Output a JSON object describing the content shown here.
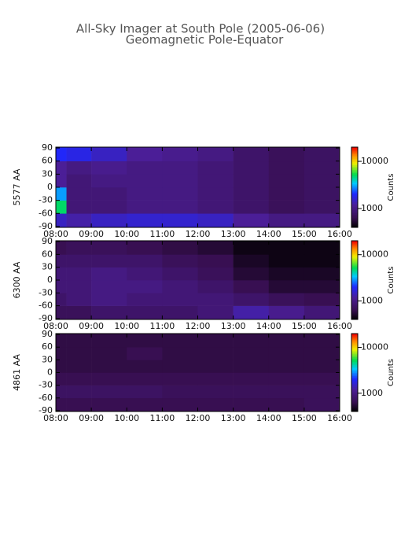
{
  "title": "All-Sky Imager at South Pole (2005-06-06)",
  "subtitle": "Geomagnetic Pole-Equator",
  "chart_data": [
    {
      "type": "heatmap",
      "ylabel": "5577 AA",
      "xlim": [
        8,
        16
      ],
      "xticks": [
        {
          "value": 8,
          "label": "08:00"
        },
        {
          "value": 9,
          "label": "09:00"
        },
        {
          "value": 10,
          "label": "10:00"
        },
        {
          "value": 11,
          "label": "11:00"
        },
        {
          "value": 12,
          "label": "12:00"
        },
        {
          "value": 13,
          "label": "13:00"
        },
        {
          "value": 14,
          "label": "14:00"
        },
        {
          "value": 15,
          "label": "15:00"
        },
        {
          "value": 16,
          "label": "16:00"
        }
      ],
      "ylim": [
        -92,
        92
      ],
      "yticks": [
        -90,
        -60,
        -30,
        0,
        30,
        60,
        90
      ],
      "xbins": [
        8,
        8.3,
        9,
        10,
        11,
        12,
        13,
        14,
        15,
        16
      ],
      "ybins": [
        -92,
        -60,
        -30,
        0,
        30,
        60,
        92
      ],
      "values": [
        [
          1500,
          1300,
          1500,
          1600,
          1600,
          1500,
          1200,
          1000,
          1000
        ],
        [
          5000,
          900,
          900,
          1000,
          1000,
          900,
          800,
          700,
          750
        ],
        [
          3000,
          900,
          900,
          1000,
          1000,
          900,
          800,
          700,
          750
        ],
        [
          1200,
          900,
          1000,
          1000,
          1000,
          900,
          800,
          700,
          750
        ],
        [
          1200,
          1000,
          1100,
          1000,
          1000,
          900,
          800,
          700,
          750
        ],
        [
          2000,
          1800,
          1500,
          1200,
          1100,
          1000,
          800,
          700,
          750
        ]
      ],
      "clim": [
        400,
        20000
      ],
      "cticks": [
        1000,
        10000
      ],
      "clog": true,
      "clabel": "Counts"
    },
    {
      "type": "heatmap",
      "ylabel": "6300 AA",
      "xlim": [
        8,
        16
      ],
      "xticks": [
        {
          "value": 8,
          "label": "08:00"
        },
        {
          "value": 9,
          "label": "09:00"
        },
        {
          "value": 10,
          "label": "10:00"
        },
        {
          "value": 11,
          "label": "11:00"
        },
        {
          "value": 12,
          "label": "12:00"
        },
        {
          "value": 13,
          "label": "13:00"
        },
        {
          "value": 14,
          "label": "14:00"
        },
        {
          "value": 15,
          "label": "15:00"
        },
        {
          "value": 16,
          "label": "16:00"
        }
      ],
      "ylim": [
        -92,
        92
      ],
      "yticks": [
        -90,
        -60,
        -30,
        0,
        30,
        60,
        90
      ],
      "xbins": [
        8,
        8.3,
        9,
        10,
        11,
        12,
        13,
        14,
        15,
        16
      ],
      "ybins": [
        -92,
        -60,
        -30,
        0,
        30,
        60,
        92
      ],
      "values": [
        [
          700,
          700,
          800,
          800,
          800,
          900,
          1300,
          1100,
          900
        ],
        [
          800,
          900,
          1000,
          900,
          900,
          900,
          800,
          700,
          650
        ],
        [
          900,
          900,
          1000,
          1000,
          900,
          800,
          650,
          550,
          550
        ],
        [
          900,
          900,
          1000,
          900,
          800,
          700,
          550,
          500,
          500
        ],
        [
          800,
          800,
          800,
          800,
          700,
          650,
          500,
          450,
          450
        ],
        [
          650,
          700,
          700,
          650,
          600,
          550,
          450,
          450,
          450
        ]
      ],
      "clim": [
        400,
        20000
      ],
      "cticks": [
        1000,
        10000
      ],
      "clog": true,
      "clabel": "Counts"
    },
    {
      "type": "heatmap",
      "ylabel": "4861 AA",
      "xlim": [
        8,
        16
      ],
      "xticks": [
        {
          "value": 8,
          "label": "08:00"
        },
        {
          "value": 9,
          "label": "09:00"
        },
        {
          "value": 10,
          "label": "10:00"
        },
        {
          "value": 11,
          "label": "11:00"
        },
        {
          "value": 12,
          "label": "12:00"
        },
        {
          "value": 13,
          "label": "13:00"
        },
        {
          "value": 14,
          "label": "14:00"
        },
        {
          "value": 15,
          "label": "15:00"
        },
        {
          "value": 16,
          "label": "16:00"
        }
      ],
      "ylim": [
        -92,
        92
      ],
      "yticks": [
        -90,
        -60,
        -30,
        0,
        30,
        60,
        90
      ],
      "xbins": [
        8,
        8.3,
        9,
        10,
        11,
        12,
        13,
        14,
        15,
        16
      ],
      "ybins": [
        -92,
        -60,
        -30,
        0,
        30,
        60,
        92
      ],
      "values": [
        [
          650,
          650,
          650,
          650,
          650,
          650,
          650,
          650,
          700
        ],
        [
          750,
          750,
          750,
          750,
          700,
          700,
          700,
          700,
          700
        ],
        [
          650,
          650,
          650,
          650,
          650,
          650,
          650,
          650,
          650
        ],
        [
          600,
          600,
          600,
          600,
          600,
          600,
          600,
          600,
          600
        ],
        [
          600,
          600,
          600,
          650,
          600,
          600,
          600,
          600,
          600
        ],
        [
          600,
          600,
          600,
          600,
          600,
          600,
          600,
          600,
          600
        ]
      ],
      "clim": [
        400,
        20000
      ],
      "cticks": [
        1000,
        10000
      ],
      "clog": true,
      "clabel": "Counts"
    }
  ]
}
